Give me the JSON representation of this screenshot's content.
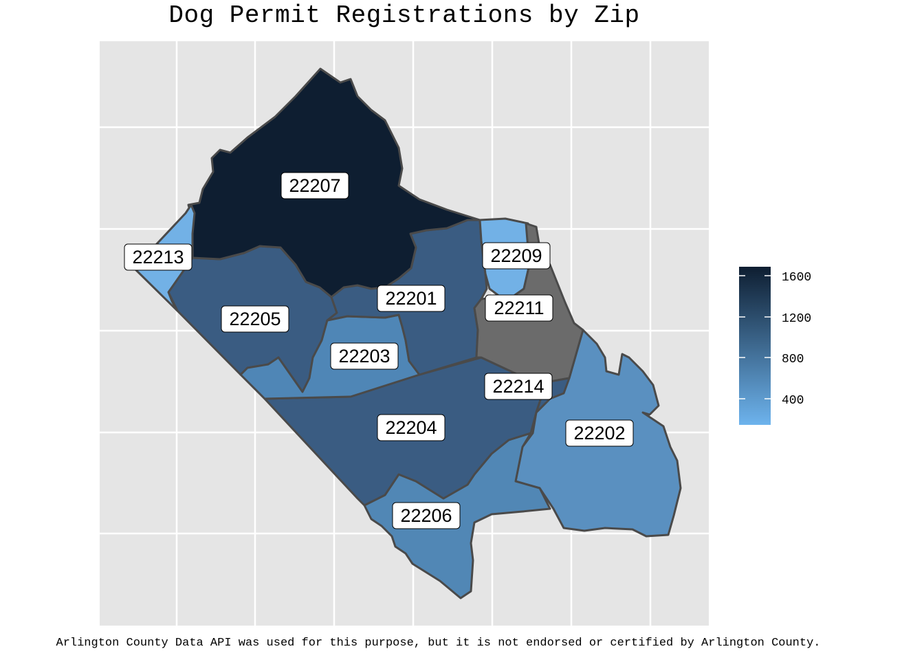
{
  "title": "Dog Permit Registrations by Zip",
  "caption": "Arlington County Data API was used for this purpose, but it is not endorsed or certified by Arlington County.",
  "colors": {
    "panel_background": "#e5e5e5",
    "grid": "#ffffff",
    "border": "#4a4a4a",
    "na_fill": "#6b6b6b",
    "scale_low": "#6db3ed",
    "scale_high": "#0e1e31"
  },
  "legend": {
    "ticks": [
      "1600",
      "1200",
      "800",
      "400"
    ]
  },
  "regions": [
    {
      "zip": "22207",
      "label": "22207",
      "fill": "#0e1e31"
    },
    {
      "zip": "22201",
      "label": "22201",
      "fill": "#3a5c82"
    },
    {
      "zip": "22205",
      "label": "22205",
      "fill": "#3a5c82"
    },
    {
      "zip": "22204",
      "label": "22204",
      "fill": "#3a5c82"
    },
    {
      "zip": "22214",
      "label": "22214",
      "fill": "#3a5c82"
    },
    {
      "zip": "22203",
      "label": "22203",
      "fill": "#4f86b6"
    },
    {
      "zip": "22206",
      "label": "22206",
      "fill": "#5187b5"
    },
    {
      "zip": "22202",
      "label": "22202",
      "fill": "#5a90c0"
    },
    {
      "zip": "22213",
      "label": "22213",
      "fill": "#72b1e6"
    },
    {
      "zip": "22209",
      "label": "22209",
      "fill": "#72b1e6"
    },
    {
      "zip": "22211",
      "label": "22211",
      "fill": "#6b6b6b"
    }
  ]
}
